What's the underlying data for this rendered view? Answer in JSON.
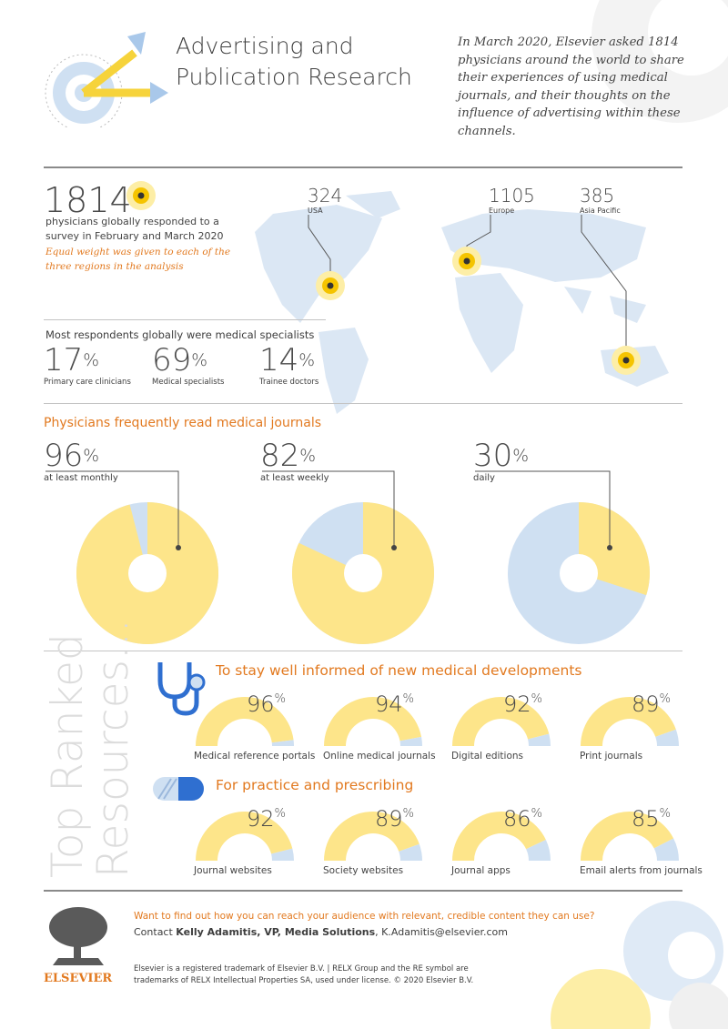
{
  "colors": {
    "yellow": "#fde58a",
    "blue": "#cfe0f2",
    "orange": "#e2791f",
    "dot": "#f5c400",
    "grey": "#3d3d3d"
  },
  "header": {
    "title_line1": "Advertising and",
    "title_line2": "Publication Research",
    "intro": "In March 2020, Elsevier asked 1814 physicians around the world to share their experiences of using medical journals, and their thoughts on the influence of advertising within these channels."
  },
  "survey": {
    "total": "1814",
    "desc": "physicians globally responded to a survey in February and March 2020",
    "note": "Equal weight was given to each of the three regions in the analysis"
  },
  "regions": [
    {
      "count": "324",
      "name": "USA"
    },
    {
      "count": "1105",
      "name": "Europe"
    },
    {
      "count": "385",
      "name": "Asia Pacific"
    }
  ],
  "respondents": {
    "heading": "Most respondents globally were medical specialists",
    "items": [
      {
        "value": "17",
        "unit": "%",
        "label": "Primary care clinicians"
      },
      {
        "value": "69",
        "unit": "%",
        "label": "Medical specialists"
      },
      {
        "value": "14",
        "unit": "%",
        "label": "Trainee doctors"
      }
    ]
  },
  "reading": {
    "heading": "Physicians frequently read medical journals"
  },
  "chart_data": [
    {
      "type": "pie",
      "title": "Physicians frequently read medical journals",
      "series": [
        {
          "name": "at least monthly",
          "value": 96,
          "unit": "%"
        },
        {
          "name": "at least weekly",
          "value": 82,
          "unit": "%"
        },
        {
          "name": "daily",
          "value": 30,
          "unit": "%"
        }
      ]
    },
    {
      "type": "pie",
      "title": "To stay well informed of new medical developments",
      "series": [
        {
          "name": "Medical reference portals",
          "value": 96,
          "unit": "%"
        },
        {
          "name": "Online medical journals",
          "value": 94,
          "unit": "%"
        },
        {
          "name": "Digital editions",
          "value": 92,
          "unit": "%"
        },
        {
          "name": "Print journals",
          "value": 89,
          "unit": "%"
        }
      ]
    },
    {
      "type": "pie",
      "title": "For practice and  prescribing",
      "series": [
        {
          "name": "Journal websites",
          "value": 92,
          "unit": "%"
        },
        {
          "name": "Society websites",
          "value": 89,
          "unit": "%"
        },
        {
          "name": "Journal apps",
          "value": 86,
          "unit": "%"
        },
        {
          "name": "Email alerts from journals",
          "value": 85,
          "unit": "%"
        }
      ]
    }
  ],
  "resources": {
    "vertical_line1": "Top Ranked",
    "vertical_line2": "Resources...",
    "group1_heading": "To stay well informed of new medical developments",
    "group2_heading": "For practice and  prescribing"
  },
  "footer": {
    "cta": "Want to find out how you can reach your audience with relevant, credible content they can use?",
    "contact_prefix": "Contact ",
    "contact_name": "Kelly Adamitis, VP, Media Solutions",
    "contact_sep": ", ",
    "contact_email": "K.Adamitis@elsevier.com",
    "legal_line1": "Elsevier is a registered trademark of Elsevier B.V. | RELX Group and the RE symbol are",
    "legal_line2": "trademarks of RELX Intellectual Properties SA, used under license. © 2020 Elsevier B.V.",
    "logo_text": "ELSEVIER"
  }
}
